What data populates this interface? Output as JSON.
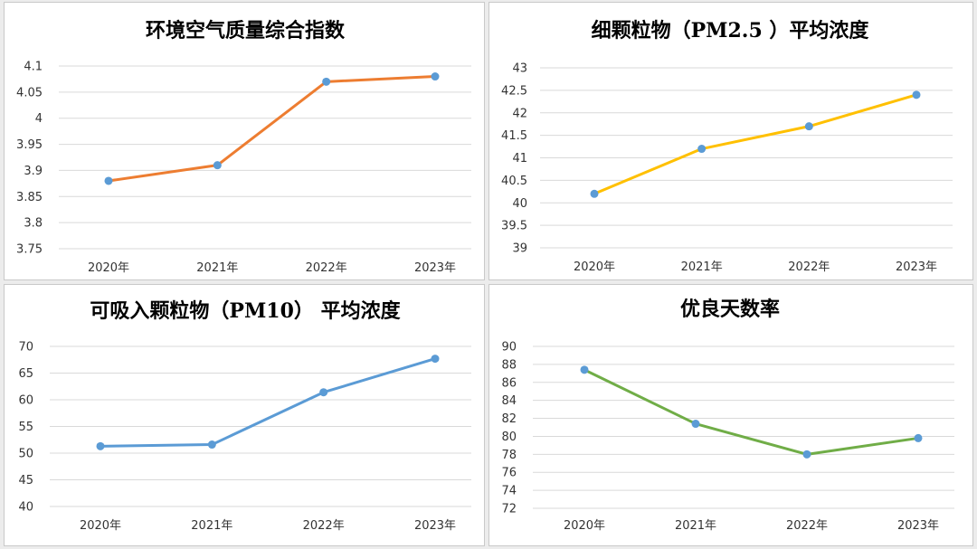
{
  "chart_data": [
    {
      "type": "line",
      "title": "环境空气质量综合指数",
      "categories": [
        "2020年",
        "2021年",
        "2022年",
        "2023年"
      ],
      "values": [
        3.88,
        3.91,
        4.07,
        4.08
      ],
      "ylim": [
        3.75,
        4.1
      ],
      "yticks": [
        3.75,
        3.8,
        3.85,
        3.9,
        3.95,
        4,
        4.05,
        4.1
      ],
      "line_color": "#ED7D31",
      "marker_color": "#5B9BD5",
      "grid": true
    },
    {
      "type": "line",
      "title": "细颗粒物（PM2.5 ）平均浓度",
      "categories": [
        "2020年",
        "2021年",
        "2022年",
        "2023年"
      ],
      "values": [
        40.2,
        41.2,
        41.7,
        42.4
      ],
      "ylim": [
        39,
        43
      ],
      "yticks": [
        39,
        39.5,
        40,
        40.5,
        41,
        41.5,
        42,
        42.5,
        43
      ],
      "line_color": "#FFC000",
      "marker_color": "#5B9BD5",
      "grid": true
    },
    {
      "type": "line",
      "title": "可吸入颗粒物（PM10） 平均浓度",
      "categories": [
        "2020年",
        "2021年",
        "2022年",
        "2023年"
      ],
      "values": [
        51.3,
        51.6,
        61.4,
        67.7
      ],
      "ylim": [
        40,
        70
      ],
      "yticks": [
        40,
        45,
        50,
        55,
        60,
        65,
        70
      ],
      "line_color": "#5B9BD5",
      "marker_color": "#5B9BD5",
      "grid": true
    },
    {
      "type": "line",
      "title": "优良天数率",
      "categories": [
        "2020年",
        "2021年",
        "2022年",
        "2023年"
      ],
      "values": [
        87.4,
        81.4,
        78.0,
        79.8
      ],
      "ylim": [
        72,
        90
      ],
      "yticks": [
        72,
        74,
        76,
        78,
        80,
        82,
        84,
        86,
        88,
        90
      ],
      "line_color": "#70AD47",
      "marker_color": "#5B9BD5",
      "grid": true
    }
  ]
}
